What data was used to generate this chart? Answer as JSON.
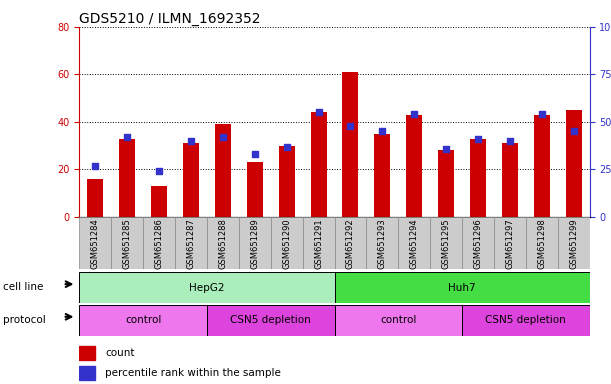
{
  "title": "GDS5210 / ILMN_1692352",
  "samples": [
    "GSM651284",
    "GSM651285",
    "GSM651286",
    "GSM651287",
    "GSM651288",
    "GSM651289",
    "GSM651290",
    "GSM651291",
    "GSM651292",
    "GSM651293",
    "GSM651294",
    "GSM651295",
    "GSM651296",
    "GSM651297",
    "GSM651298",
    "GSM651299"
  ],
  "counts": [
    16,
    33,
    13,
    31,
    39,
    23,
    30,
    44,
    61,
    35,
    43,
    28,
    33,
    31,
    43,
    45
  ],
  "percentile_ranks": [
    27,
    42,
    24,
    40,
    42,
    33,
    37,
    55,
    48,
    45,
    54,
    36,
    41,
    40,
    54,
    45
  ],
  "count_color": "#cc0000",
  "percentile_color": "#3333cc",
  "ylim_left": [
    0,
    80
  ],
  "ylim_right": [
    0,
    100
  ],
  "yticks_left": [
    0,
    20,
    40,
    60,
    80
  ],
  "ytick_labels_left": [
    "0",
    "20",
    "40",
    "60",
    "80"
  ],
  "yticks_right": [
    0,
    25,
    50,
    75,
    100
  ],
  "ytick_labels_right": [
    "0",
    "25",
    "50",
    "75",
    "100%"
  ],
  "cell_line_groups": [
    {
      "label": "HepG2",
      "start": 0,
      "end": 8,
      "color": "#aaeebb"
    },
    {
      "label": "Huh7",
      "start": 8,
      "end": 16,
      "color": "#44dd44"
    }
  ],
  "protocol_groups": [
    {
      "label": "control",
      "start": 0,
      "end": 4,
      "color": "#ee77ee"
    },
    {
      "label": "CSN5 depletion",
      "start": 4,
      "end": 8,
      "color": "#dd44dd"
    },
    {
      "label": "control",
      "start": 8,
      "end": 12,
      "color": "#ee77ee"
    },
    {
      "label": "CSN5 depletion",
      "start": 12,
      "end": 16,
      "color": "#dd44dd"
    }
  ],
  "bar_width": 0.5,
  "grid_color": "#000000",
  "bg_color": "#cccccc",
  "title_fontsize": 10,
  "tick_fontsize": 7,
  "label_fontsize": 7.5,
  "sample_fontsize": 6
}
